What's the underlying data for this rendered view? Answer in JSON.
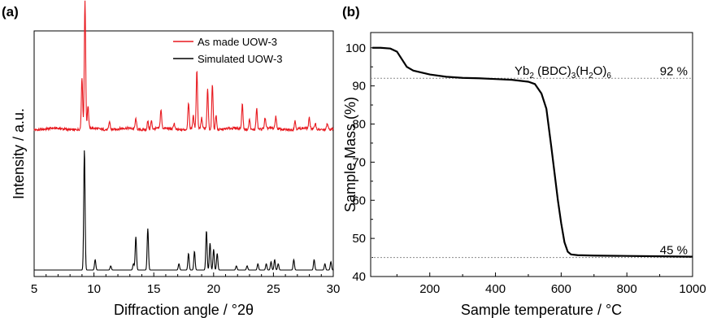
{
  "chart_data": [
    {
      "panel_label": "(a)",
      "type": "line",
      "xlabel": "Diffraction angle / °2θ",
      "ylabel": "Intensity / a.u.",
      "xlim": [
        5,
        30
      ],
      "x_ticks": [
        "5",
        "10",
        "15",
        "20",
        "25",
        "30"
      ],
      "legend_position": "top-right",
      "series": [
        {
          "name": "As made UOW-3",
          "color": "#e8191f",
          "baseline": 0.68,
          "peaks": [
            {
              "x": 9.0,
              "h": 0.25
            },
            {
              "x": 9.25,
              "h": 0.62
            },
            {
              "x": 9.5,
              "h": 0.11
            },
            {
              "x": 11.3,
              "h": 0.04
            },
            {
              "x": 13.5,
              "h": 0.05
            },
            {
              "x": 14.5,
              "h": 0.04
            },
            {
              "x": 14.8,
              "h": 0.04
            },
            {
              "x": 15.6,
              "h": 0.09
            },
            {
              "x": 16.7,
              "h": 0.03
            },
            {
              "x": 17.9,
              "h": 0.13
            },
            {
              "x": 18.3,
              "h": 0.06
            },
            {
              "x": 18.6,
              "h": 0.28
            },
            {
              "x": 19.0,
              "h": 0.05
            },
            {
              "x": 19.5,
              "h": 0.19
            },
            {
              "x": 19.9,
              "h": 0.22
            },
            {
              "x": 20.2,
              "h": 0.07
            },
            {
              "x": 22.4,
              "h": 0.12
            },
            {
              "x": 23.0,
              "h": 0.05
            },
            {
              "x": 23.6,
              "h": 0.1
            },
            {
              "x": 24.3,
              "h": 0.05
            },
            {
              "x": 25.2,
              "h": 0.06
            },
            {
              "x": 26.8,
              "h": 0.04
            },
            {
              "x": 28.0,
              "h": 0.05
            },
            {
              "x": 28.5,
              "h": 0.03
            },
            {
              "x": 29.5,
              "h": 0.03
            }
          ]
        },
        {
          "name": "Simulated UOW-3",
          "color": "#000000",
          "baseline": 0.0,
          "peaks": [
            {
              "x": 9.2,
              "h": 0.58
            },
            {
              "x": 10.1,
              "h": 0.05
            },
            {
              "x": 11.4,
              "h": 0.02
            },
            {
              "x": 13.3,
              "h": 0.03
            },
            {
              "x": 13.5,
              "h": 0.16
            },
            {
              "x": 14.5,
              "h": 0.2
            },
            {
              "x": 17.1,
              "h": 0.03
            },
            {
              "x": 17.9,
              "h": 0.08
            },
            {
              "x": 18.4,
              "h": 0.09
            },
            {
              "x": 19.4,
              "h": 0.19
            },
            {
              "x": 19.7,
              "h": 0.13
            },
            {
              "x": 20.0,
              "h": 0.1
            },
            {
              "x": 20.3,
              "h": 0.08
            },
            {
              "x": 21.9,
              "h": 0.02
            },
            {
              "x": 22.8,
              "h": 0.02
            },
            {
              "x": 23.7,
              "h": 0.03
            },
            {
              "x": 24.4,
              "h": 0.03
            },
            {
              "x": 24.8,
              "h": 0.04
            },
            {
              "x": 25.1,
              "h": 0.05
            },
            {
              "x": 25.4,
              "h": 0.03
            },
            {
              "x": 26.7,
              "h": 0.05
            },
            {
              "x": 28.4,
              "h": 0.05
            },
            {
              "x": 29.3,
              "h": 0.03
            },
            {
              "x": 29.8,
              "h": 0.04
            }
          ]
        }
      ]
    },
    {
      "panel_label": "(b)",
      "type": "line",
      "xlabel": "Sample temperature / °C",
      "ylabel": "Sample Mass (%)",
      "xlim": [
        20,
        1000
      ],
      "ylim": [
        40,
        104
      ],
      "x_ticks": [
        200,
        400,
        600,
        800,
        1000
      ],
      "y_ticks": [
        40,
        50,
        60,
        70,
        80,
        90,
        100
      ],
      "series": [
        {
          "color": "#000000",
          "x": [
            25,
            50,
            80,
            100,
            115,
            130,
            150,
            200,
            250,
            300,
            350,
            400,
            450,
            500,
            520,
            540,
            555,
            570,
            580,
            590,
            600,
            610,
            620,
            630,
            650,
            700,
            800,
            900,
            1000
          ],
          "y": [
            100,
            100,
            99.8,
            99.0,
            97.0,
            95.0,
            94.0,
            93.0,
            92.4,
            92.1,
            92.0,
            91.8,
            91.6,
            91.1,
            90.5,
            88.0,
            84.0,
            74.0,
            67.0,
            60.0,
            54.0,
            49.0,
            46.5,
            45.8,
            45.6,
            45.5,
            45.4,
            45.3,
            45.2
          ]
        }
      ],
      "reference_lines": [
        {
          "y": 92,
          "label": "92 %"
        },
        {
          "y": 45,
          "label": "45 %"
        }
      ],
      "annotation": {
        "base": "Yb",
        "sub1": "2",
        "mid": " (BDC)",
        "sub2": "3",
        "tail1": "(H",
        "sub3": "2",
        "tail2": "O)",
        "sub4": "6"
      }
    }
  ]
}
